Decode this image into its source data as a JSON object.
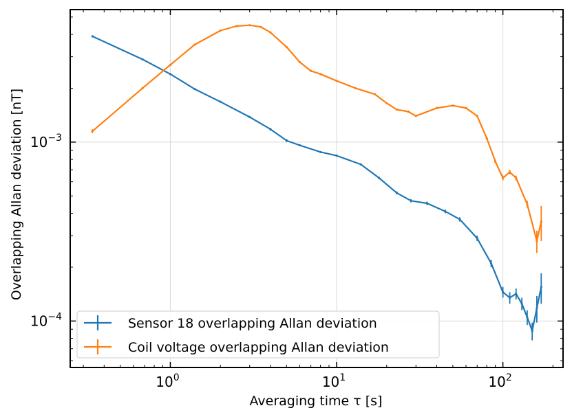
{
  "chart_data": {
    "type": "line",
    "xscale": "log",
    "yscale": "log",
    "xlabel": "Averaging time τ [s]",
    "ylabel": "Overlapping Allan deviation [nT]",
    "xlim": [
      0.25,
      230
    ],
    "ylim": [
      5.5e-05,
      0.0055
    ],
    "grid": true,
    "legend_position": "lower-left",
    "x_tick_labels": [
      {
        "base": "10",
        "exp": "0",
        "value": 1
      },
      {
        "base": "10",
        "exp": "1",
        "value": 10
      },
      {
        "base": "10",
        "exp": "2",
        "value": 100
      }
    ],
    "y_tick_labels": [
      {
        "base": "10",
        "exp": "−3",
        "value": 0.001
      },
      {
        "base": "10",
        "exp": "−4",
        "value": 0.0001
      }
    ],
    "series": [
      {
        "name": "Sensor 18 overlapping Allan deviation",
        "color": "#1f77b4",
        "x": [
          0.34,
          0.68,
          1.0,
          1.4,
          2.0,
          3.0,
          4.0,
          5.0,
          6.0,
          8.0,
          10.0,
          14.0,
          18.0,
          23.0,
          28.0,
          35.0,
          45.0,
          55.0,
          70.0,
          85.0,
          100.0,
          110.0,
          120.0,
          130.0,
          140.0,
          150.0,
          160.0,
          170.0
        ],
        "values": [
          0.0039,
          0.0029,
          0.0024,
          0.00198,
          0.00168,
          0.00138,
          0.00118,
          0.00102,
          0.00096,
          0.00088,
          0.00084,
          0.00075,
          0.00063,
          0.00052,
          0.00047,
          0.000455,
          0.00041,
          0.00037,
          0.00029,
          0.00021,
          0.000145,
          0.000135,
          0.000142,
          0.000125,
          0.000105,
          8.8e-05,
          0.000118,
          0.000155
        ],
        "errors": [
          5e-05,
          4e-05,
          3e-05,
          2e-05,
          2e-05,
          2e-05,
          2e-05,
          2e-05,
          1e-05,
          1e-05,
          1e-05,
          1e-05,
          1e-05,
          1e-05,
          1e-05,
          1e-05,
          1e-05,
          1e-05,
          1e-05,
          1e-05,
          1e-05,
          1e-05,
          1e-05,
          1e-05,
          1e-05,
          1e-05,
          2e-05,
          3e-05
        ]
      },
      {
        "name": "Coil voltage overlapping Allan deviation",
        "color": "#ff7f0e",
        "x": [
          0.34,
          0.68,
          1.0,
          1.4,
          2.0,
          2.5,
          3.0,
          3.5,
          4.0,
          5.0,
          6.0,
          7.0,
          8.0,
          10.0,
          13.0,
          17.0,
          20.0,
          23.0,
          27.0,
          30.0,
          40.0,
          50.0,
          60.0,
          70.0,
          80.0,
          90.0,
          100.0,
          110.0,
          120.0,
          140.0,
          160.0,
          170.0
        ],
        "values": [
          0.00115,
          0.002,
          0.0027,
          0.0035,
          0.0042,
          0.00445,
          0.0045,
          0.0044,
          0.0041,
          0.0034,
          0.0028,
          0.0025,
          0.0024,
          0.0022,
          0.002,
          0.00185,
          0.00165,
          0.00152,
          0.00148,
          0.0014,
          0.00155,
          0.0016,
          0.00155,
          0.0014,
          0.00105,
          0.00078,
          0.00063,
          0.00068,
          0.00063,
          0.00045,
          0.00028,
          0.00036
        ],
        "errors": [
          3e-05,
          3e-05,
          3e-05,
          3e-05,
          3e-05,
          3e-05,
          3e-05,
          3e-05,
          3e-05,
          3e-05,
          3e-05,
          3e-05,
          3e-05,
          3e-05,
          2e-05,
          2e-05,
          2e-05,
          2e-05,
          2e-05,
          2e-05,
          2e-05,
          2e-05,
          2e-05,
          2e-05,
          2e-05,
          2e-05,
          2e-05,
          2e-05,
          2e-05,
          2e-05,
          4e-05,
          8e-05
        ]
      }
    ]
  }
}
